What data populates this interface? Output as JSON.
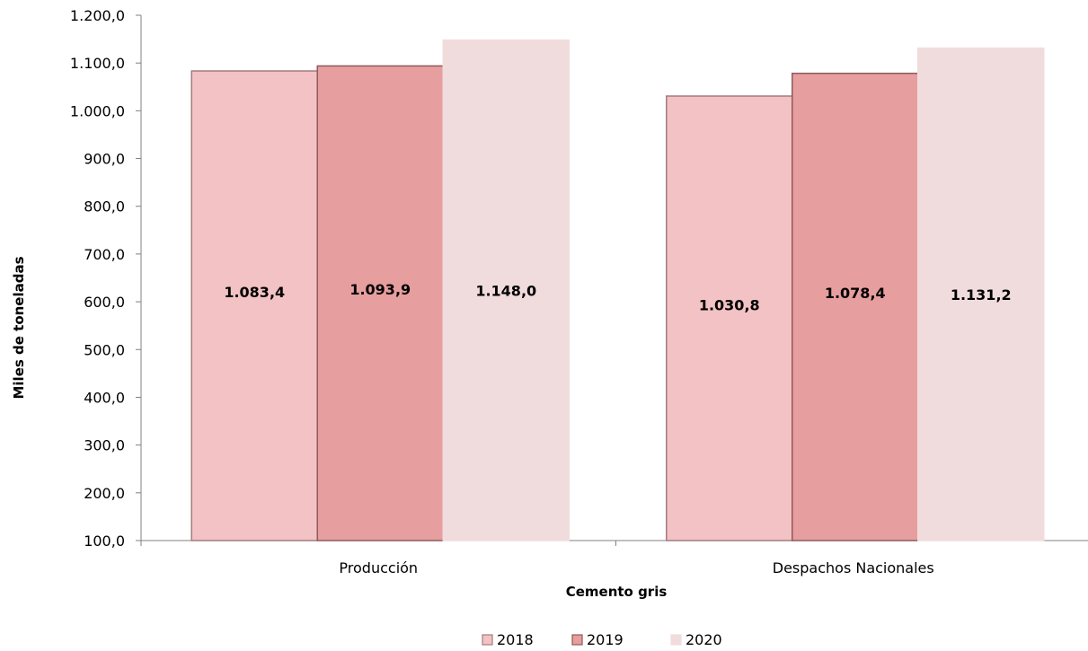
{
  "chart_data": {
    "type": "bar",
    "categories": [
      "Producción",
      "Despachos Nacionales"
    ],
    "series": [
      {
        "name": "2018",
        "values": [
          1083.4,
          1030.8
        ],
        "labels": [
          "1.083,4",
          "1.030,8"
        ],
        "color": "#f3c2c4",
        "stroke": "#a37c7f"
      },
      {
        "name": "2019",
        "values": [
          1093.9,
          1078.4
        ],
        "labels": [
          "1.093,9",
          "1.078,4"
        ],
        "color": "#e79e9f",
        "stroke": "#8f5a5c"
      },
      {
        "name": "2020",
        "values": [
          1148.0,
          1131.2
        ],
        "labels": [
          "1.148,0",
          "1.131,2"
        ],
        "color": "#f1dcdd",
        "stroke": "#f1dcdd"
      }
    ],
    "yticks": [
      100,
      200,
      300,
      400,
      500,
      600,
      700,
      800,
      900,
      1000,
      1100,
      1200
    ],
    "ytick_labels": [
      "100,0",
      "200,0",
      "300,0",
      "400,0",
      "500,0",
      "600,0",
      "700,0",
      "800,0",
      "900,0",
      "1.000,0",
      "1.100,0",
      "1.200,0"
    ],
    "ylim": [
      100,
      1200
    ],
    "xlabel": "Cemento gris",
    "ylabel": "Miles de toneladas",
    "title": "",
    "grid": false,
    "legend_position": "bottom"
  }
}
